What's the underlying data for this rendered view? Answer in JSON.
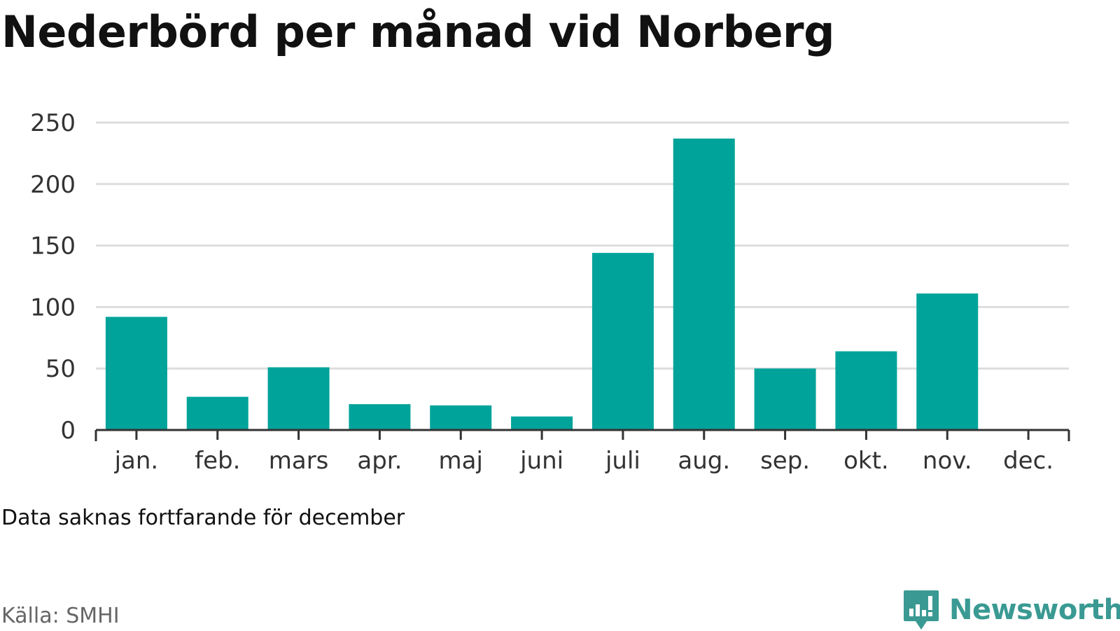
{
  "title": "Nederbörd per månad vid Norberg",
  "note": "Data saknas fortfarande för december",
  "source": "Källa: SMHI",
  "logo": {
    "text": "Newsworthy",
    "icon": "newsworthy-chart-icon",
    "color": "#3a9a93"
  },
  "colors": {
    "bar": "#00a39a",
    "grid": "#dddddd",
    "axis": "#333333"
  },
  "chart_data": {
    "type": "bar",
    "categories": [
      "jan.",
      "feb.",
      "mars",
      "apr.",
      "maj",
      "juni",
      "juli",
      "aug.",
      "sep.",
      "okt.",
      "nov.",
      "dec."
    ],
    "values": [
      92,
      27,
      51,
      21,
      20,
      11,
      144,
      237,
      50,
      64,
      111,
      null
    ],
    "title": "Nederbörd per månad vid Norberg",
    "xlabel": "",
    "ylabel": "",
    "ylim": [
      0,
      250
    ],
    "yticks": [
      0,
      50,
      100,
      150,
      200,
      250
    ],
    "grid": true,
    "legend": "none"
  }
}
